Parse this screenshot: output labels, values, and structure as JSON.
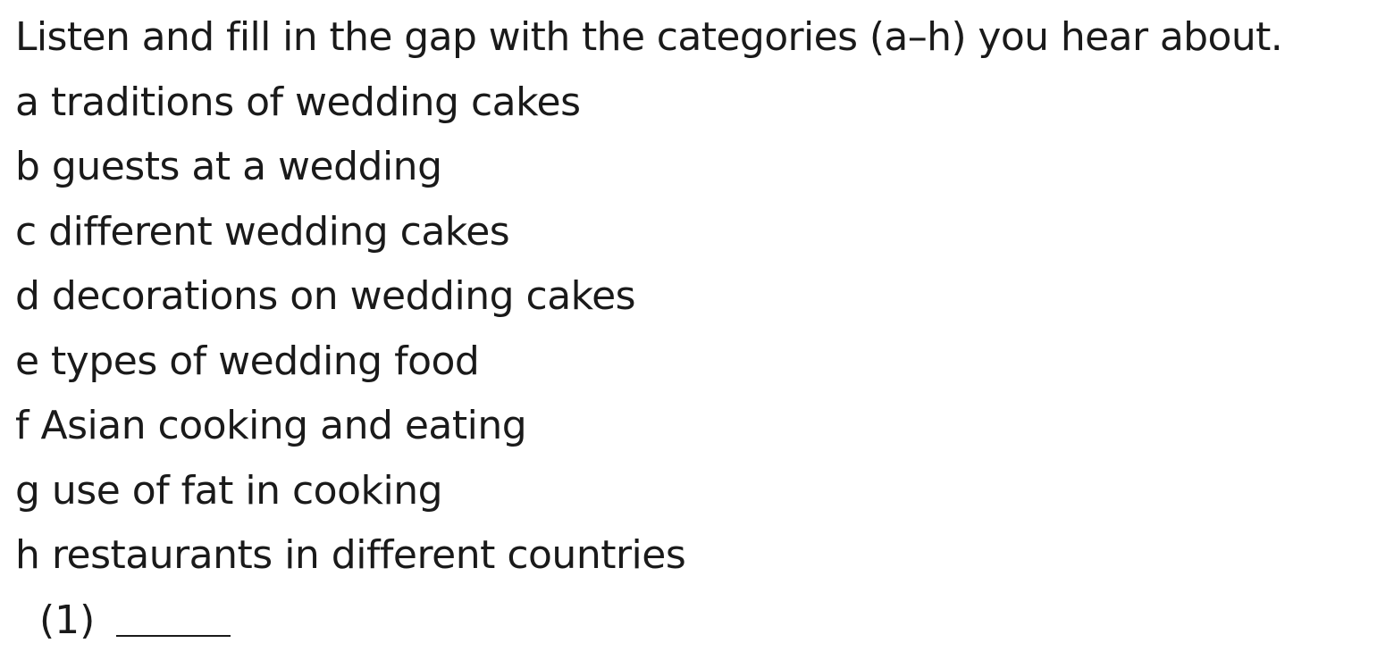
{
  "instruction": "Listen and fill in the gap with the categories (a–h) you hear about.",
  "options": [
    "a traditions of wedding cakes",
    "b guests at a wedding",
    "c different wedding cakes",
    "d decorations on wedding cakes",
    "e types of wedding food",
    "f Asian cooking and eating",
    "g use of fat in cooking",
    "h restaurants in different countries"
  ],
  "answer": {
    "number": "(1)",
    "value": ""
  }
}
